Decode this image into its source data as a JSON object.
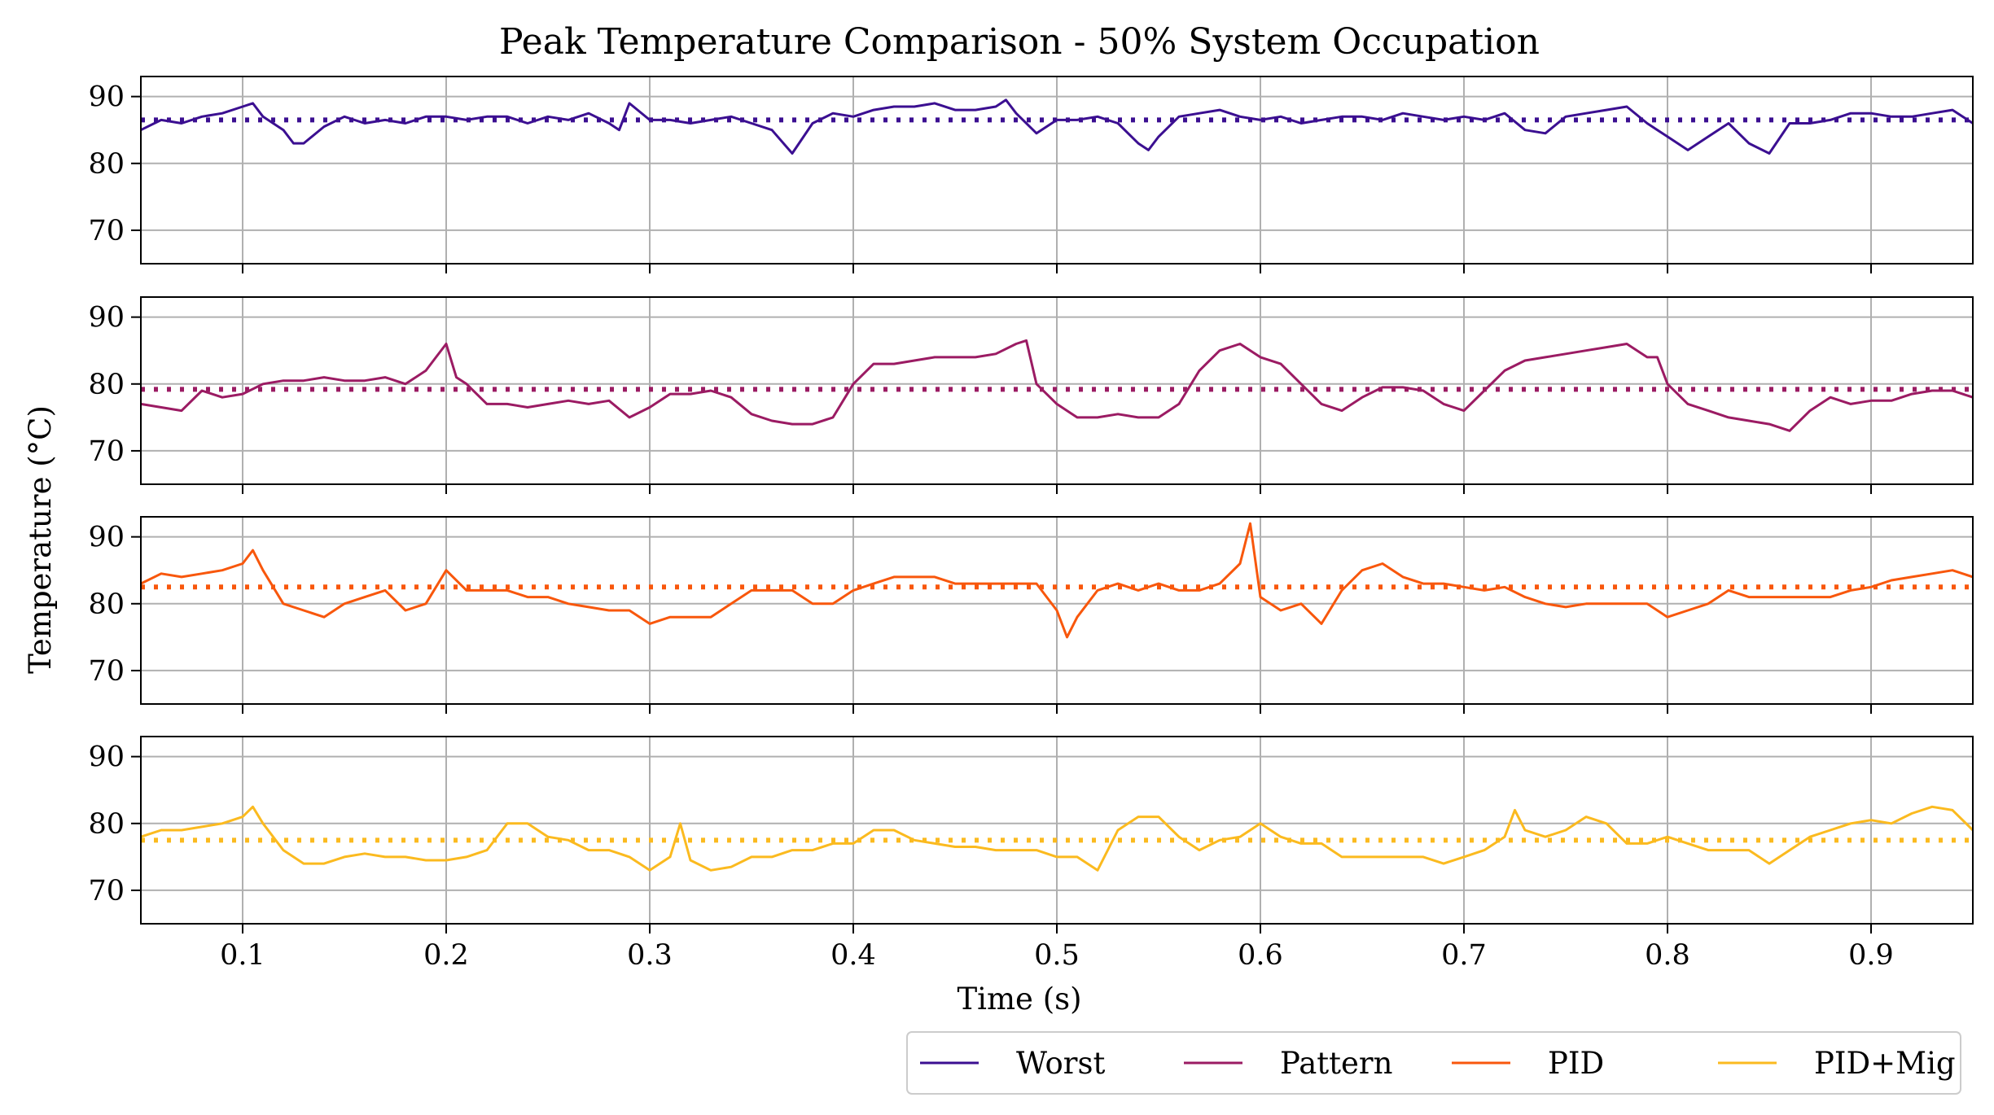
{
  "chart_data": {
    "type": "line",
    "title": "Peak Temperature Comparison - 50% System Occupation",
    "xlabel": "Time (s)",
    "ylabel": "Temperature (°C)",
    "xlim": [
      0.05,
      0.95
    ],
    "ylim": [
      65,
      93
    ],
    "x_ticks": [
      "0.1",
      "0.2",
      "0.3",
      "0.4",
      "0.5",
      "0.6",
      "0.7",
      "0.8",
      "0.9"
    ],
    "y_ticks": [
      "90",
      "80",
      "70"
    ],
    "grid": true,
    "legend_position": "bottom-right",
    "series": [
      {
        "name": "Worst",
        "color": "#3b0f91",
        "mean": 86.5,
        "x": [
          0.05,
          0.06,
          0.07,
          0.08,
          0.09,
          0.1,
          0.105,
          0.11,
          0.12,
          0.125,
          0.13,
          0.14,
          0.15,
          0.16,
          0.17,
          0.18,
          0.19,
          0.2,
          0.21,
          0.22,
          0.23,
          0.24,
          0.25,
          0.26,
          0.27,
          0.28,
          0.285,
          0.29,
          0.3,
          0.31,
          0.32,
          0.33,
          0.34,
          0.35,
          0.36,
          0.37,
          0.38,
          0.39,
          0.4,
          0.41,
          0.42,
          0.43,
          0.44,
          0.45,
          0.46,
          0.47,
          0.475,
          0.48,
          0.49,
          0.5,
          0.51,
          0.52,
          0.53,
          0.54,
          0.545,
          0.55,
          0.56,
          0.57,
          0.58,
          0.59,
          0.6,
          0.61,
          0.62,
          0.63,
          0.64,
          0.65,
          0.66,
          0.67,
          0.68,
          0.69,
          0.7,
          0.71,
          0.72,
          0.73,
          0.74,
          0.75,
          0.76,
          0.77,
          0.78,
          0.79,
          0.8,
          0.81,
          0.82,
          0.83,
          0.84,
          0.85,
          0.86,
          0.87,
          0.88,
          0.89,
          0.9,
          0.91,
          0.92,
          0.93,
          0.94,
          0.95
        ],
        "values": [
          85,
          86.5,
          86,
          87,
          87.5,
          88.5,
          89,
          87,
          85,
          83,
          83,
          85.5,
          87,
          86,
          86.5,
          86,
          87,
          87,
          86.5,
          87,
          87,
          86,
          87,
          86.5,
          87.5,
          86,
          85,
          89,
          86.5,
          86.5,
          86,
          86.5,
          87,
          86,
          85,
          81.5,
          86,
          87.5,
          87,
          88,
          88.5,
          88.5,
          89,
          88,
          88,
          88.5,
          89.5,
          87.5,
          84.5,
          86.5,
          86.5,
          87,
          86,
          83,
          82,
          84,
          87,
          87.5,
          88,
          87,
          86.5,
          87,
          86,
          86.5,
          87,
          87,
          86.5,
          87.5,
          87,
          86.5,
          87,
          86.5,
          87.5,
          85,
          84.5,
          87,
          87.5,
          88,
          88.5,
          86,
          84,
          82,
          84,
          86,
          83,
          81.5,
          86,
          86,
          86.5,
          87.5,
          87.5,
          87,
          87,
          87.5,
          88,
          86
        ]
      },
      {
        "name": "Pattern",
        "color": "#9b1b63",
        "mean": 79.2,
        "x": [
          0.05,
          0.06,
          0.07,
          0.08,
          0.09,
          0.1,
          0.11,
          0.12,
          0.13,
          0.14,
          0.15,
          0.16,
          0.17,
          0.18,
          0.19,
          0.195,
          0.2,
          0.205,
          0.21,
          0.22,
          0.23,
          0.24,
          0.25,
          0.26,
          0.27,
          0.28,
          0.29,
          0.3,
          0.31,
          0.32,
          0.33,
          0.34,
          0.35,
          0.36,
          0.37,
          0.38,
          0.39,
          0.4,
          0.41,
          0.42,
          0.43,
          0.44,
          0.45,
          0.46,
          0.47,
          0.48,
          0.485,
          0.49,
          0.5,
          0.51,
          0.52,
          0.53,
          0.54,
          0.55,
          0.56,
          0.57,
          0.58,
          0.59,
          0.6,
          0.61,
          0.62,
          0.63,
          0.64,
          0.65,
          0.66,
          0.67,
          0.68,
          0.69,
          0.7,
          0.71,
          0.72,
          0.73,
          0.74,
          0.75,
          0.76,
          0.77,
          0.78,
          0.79,
          0.795,
          0.8,
          0.81,
          0.82,
          0.83,
          0.84,
          0.85,
          0.86,
          0.87,
          0.88,
          0.89,
          0.9,
          0.91,
          0.92,
          0.93,
          0.94,
          0.95
        ],
        "values": [
          77,
          76.5,
          76,
          79,
          78,
          78.5,
          80,
          80.5,
          80.5,
          81,
          80.5,
          80.5,
          81,
          80,
          82,
          84,
          86,
          81,
          80,
          77,
          77,
          76.5,
          77,
          77.5,
          77,
          77.5,
          75,
          76.5,
          78.5,
          78.5,
          79,
          78,
          75.5,
          74.5,
          74,
          74,
          75,
          80,
          83,
          83,
          83.5,
          84,
          84,
          84,
          84.5,
          86,
          86.5,
          80,
          77,
          75,
          75,
          75.5,
          75,
          75,
          77,
          82,
          85,
          86,
          84,
          83,
          80,
          77,
          76,
          78,
          79.5,
          79.5,
          79,
          77,
          76,
          79,
          82,
          83.5,
          84,
          84.5,
          85,
          85.5,
          86,
          84,
          84,
          80,
          77,
          76,
          75,
          74.5,
          74,
          73,
          76,
          78,
          77,
          77.5,
          77.5,
          78.5,
          79,
          79,
          78
        ]
      },
      {
        "name": "PID",
        "color": "#f8570c",
        "mean": 82.5,
        "x": [
          0.05,
          0.06,
          0.07,
          0.08,
          0.09,
          0.1,
          0.105,
          0.11,
          0.12,
          0.13,
          0.14,
          0.15,
          0.16,
          0.17,
          0.18,
          0.19,
          0.2,
          0.21,
          0.22,
          0.23,
          0.24,
          0.25,
          0.26,
          0.27,
          0.28,
          0.29,
          0.3,
          0.31,
          0.32,
          0.33,
          0.34,
          0.35,
          0.36,
          0.37,
          0.38,
          0.39,
          0.4,
          0.41,
          0.42,
          0.43,
          0.44,
          0.45,
          0.46,
          0.47,
          0.48,
          0.49,
          0.5,
          0.505,
          0.51,
          0.52,
          0.53,
          0.54,
          0.55,
          0.56,
          0.57,
          0.58,
          0.59,
          0.595,
          0.6,
          0.61,
          0.62,
          0.63,
          0.64,
          0.65,
          0.66,
          0.67,
          0.68,
          0.69,
          0.7,
          0.71,
          0.72,
          0.73,
          0.74,
          0.75,
          0.76,
          0.77,
          0.78,
          0.79,
          0.8,
          0.81,
          0.82,
          0.83,
          0.84,
          0.85,
          0.86,
          0.87,
          0.88,
          0.89,
          0.9,
          0.91,
          0.92,
          0.93,
          0.94,
          0.95
        ],
        "values": [
          83,
          84.5,
          84,
          84.5,
          85,
          86,
          88,
          85,
          80,
          79,
          78,
          80,
          81,
          82,
          79,
          80,
          85,
          82,
          82,
          82,
          81,
          81,
          80,
          79.5,
          79,
          79,
          77,
          78,
          78,
          78,
          80,
          82,
          82,
          82,
          80,
          80,
          82,
          83,
          84,
          84,
          84,
          83,
          83,
          83,
          83,
          83,
          79,
          75,
          78,
          82,
          83,
          82,
          83,
          82,
          82,
          83,
          86,
          92,
          81,
          79,
          80,
          77,
          82,
          85,
          86,
          84,
          83,
          83,
          82.5,
          82,
          82.5,
          81,
          80,
          79.5,
          80,
          80,
          80,
          80,
          78,
          79,
          80,
          82,
          81,
          81,
          81,
          81,
          81,
          82,
          82.5,
          83.5,
          84,
          84.5,
          85,
          84
        ]
      },
      {
        "name": "PID+Mig",
        "color": "#fbba1f",
        "mean": 77.5,
        "x": [
          0.05,
          0.06,
          0.07,
          0.08,
          0.09,
          0.1,
          0.105,
          0.11,
          0.12,
          0.13,
          0.14,
          0.15,
          0.16,
          0.17,
          0.18,
          0.19,
          0.2,
          0.21,
          0.22,
          0.23,
          0.24,
          0.25,
          0.26,
          0.27,
          0.28,
          0.29,
          0.3,
          0.31,
          0.315,
          0.32,
          0.33,
          0.34,
          0.35,
          0.36,
          0.37,
          0.38,
          0.39,
          0.4,
          0.41,
          0.42,
          0.43,
          0.44,
          0.45,
          0.46,
          0.47,
          0.48,
          0.49,
          0.5,
          0.51,
          0.52,
          0.53,
          0.54,
          0.55,
          0.56,
          0.57,
          0.58,
          0.59,
          0.6,
          0.61,
          0.62,
          0.63,
          0.64,
          0.65,
          0.66,
          0.67,
          0.68,
          0.69,
          0.7,
          0.71,
          0.72,
          0.725,
          0.73,
          0.74,
          0.75,
          0.76,
          0.77,
          0.78,
          0.79,
          0.8,
          0.81,
          0.82,
          0.83,
          0.84,
          0.85,
          0.86,
          0.87,
          0.88,
          0.89,
          0.9,
          0.91,
          0.92,
          0.93,
          0.94,
          0.95
        ],
        "values": [
          78,
          79,
          79,
          79.5,
          80,
          81,
          82.5,
          80,
          76,
          74,
          74,
          75,
          75.5,
          75,
          75,
          74.5,
          74.5,
          75,
          76,
          80,
          80,
          78,
          77.5,
          76,
          76,
          75,
          73,
          75,
          80,
          74.5,
          73,
          73.5,
          75,
          75,
          76,
          76,
          77,
          77,
          79,
          79,
          77.5,
          77,
          76.5,
          76.5,
          76,
          76,
          76,
          75,
          75,
          73,
          79,
          81,
          81,
          78,
          76,
          77.5,
          78,
          80,
          78,
          77,
          77,
          75,
          75,
          75,
          75,
          75,
          74,
          75,
          76,
          78,
          82,
          79,
          78,
          79,
          81,
          80,
          77,
          77,
          78,
          77,
          76,
          76,
          76,
          74,
          76,
          78,
          79,
          80,
          80.5,
          80,
          81.5,
          82.5,
          82,
          79
        ]
      }
    ]
  }
}
